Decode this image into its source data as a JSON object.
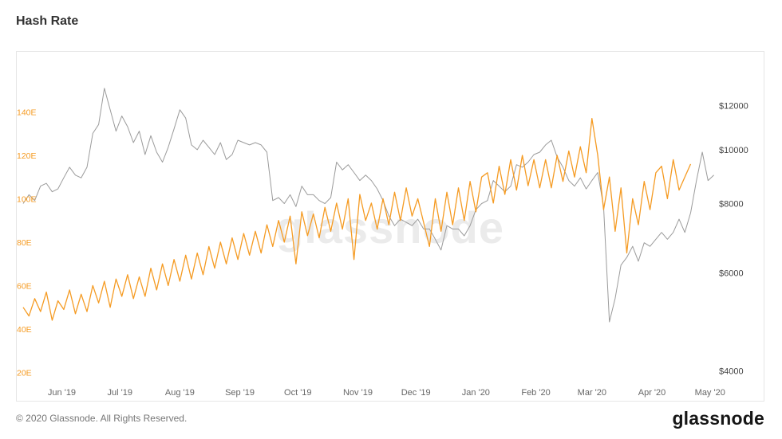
{
  "page": {
    "title": "Hash Rate",
    "watermark": "glassnode",
    "footer_copyright": "© 2020 Glassnode. All Rights Reserved.",
    "brand_logo": "glassnode"
  },
  "chart_data": {
    "type": "line",
    "title": "Hash Rate",
    "grid": "off",
    "legend": "none",
    "watermark": "glassnode",
    "x_axis": {
      "domain_days": [
        0,
        365
      ],
      "tick_days": [
        20,
        50,
        81,
        112,
        142,
        173,
        203,
        234,
        265,
        294,
        325,
        355
      ],
      "tick_labels": [
        "Jun '19",
        "Jul '19",
        "Aug '19",
        "Sep '19",
        "Oct '19",
        "Nov '19",
        "Dec '19",
        "Jan '20",
        "Feb '20",
        "Mar '20",
        "Apr '20",
        "May '20"
      ],
      "label_color": "#666666"
    },
    "y_left": {
      "name": "hash-rate-axis",
      "scale": "linear",
      "range": [
        15,
        160
      ],
      "ticks": [
        20,
        40,
        60,
        80,
        100,
        120,
        140
      ],
      "tick_labels": [
        "20E",
        "40E",
        "60E",
        "80E",
        "100E",
        "120E",
        "140E"
      ],
      "color": "#f59b23"
    },
    "y_right": {
      "name": "price-axis",
      "scale": "log",
      "range": [
        3800,
        14000
      ],
      "ticks": [
        4000,
        6000,
        8000,
        10000,
        12000
      ],
      "tick_labels": [
        "$4000",
        "$6000",
        "$8000",
        "$10000",
        "$12000"
      ],
      "color": "#444444"
    },
    "x_start_day": 0,
    "x_step_days": 3,
    "series": [
      {
        "name": "btc-price-usd",
        "axis": "right",
        "color": "#9b9b9b",
        "width": 1,
        "values": [
          8000,
          8300,
          8100,
          8600,
          8700,
          8400,
          8500,
          8900,
          9300,
          9000,
          8900,
          9300,
          10700,
          11100,
          12900,
          11800,
          10800,
          11500,
          11000,
          10300,
          10800,
          9800,
          10600,
          9900,
          9500,
          10100,
          10900,
          11800,
          11400,
          10200,
          10000,
          10400,
          10100,
          9800,
          10300,
          9600,
          9800,
          10400,
          10300,
          10200,
          10300,
          10200,
          9900,
          8100,
          8200,
          8000,
          8300,
          7900,
          8600,
          8300,
          8300,
          8100,
          8000,
          8200,
          9500,
          9200,
          9400,
          9100,
          8800,
          9000,
          8800,
          8500,
          8100,
          7600,
          7300,
          7500,
          7400,
          7300,
          7500,
          7200,
          7200,
          6900,
          6600,
          7300,
          7200,
          7200,
          7000,
          7300,
          7800,
          8000,
          8100,
          8800,
          8600,
          8400,
          8600,
          9400,
          9300,
          9500,
          9800,
          9900,
          10200,
          10400,
          9700,
          9300,
          8800,
          8600,
          8900,
          8500,
          8800,
          9100,
          7900,
          4900,
          5400,
          6200,
          6400,
          6700,
          6300,
          6800,
          6700,
          6900,
          7100,
          6900,
          7100,
          7500,
          7100,
          7700,
          8800,
          9900,
          8800,
          9000
        ]
      },
      {
        "name": "hash-rate-eh",
        "axis": "left",
        "color": "#f59b23",
        "width": 1.3,
        "values": [
          50,
          46,
          54,
          48,
          57,
          44,
          53,
          49,
          58,
          47,
          56,
          48,
          60,
          52,
          62,
          50,
          63,
          55,
          65,
          54,
          64,
          55,
          68,
          58,
          70,
          60,
          72,
          62,
          74,
          63,
          75,
          65,
          78,
          68,
          80,
          70,
          82,
          72,
          84,
          74,
          85,
          75,
          88,
          78,
          90,
          80,
          92,
          70,
          94,
          83,
          93,
          82,
          96,
          85,
          98,
          86,
          100,
          72,
          102,
          90,
          98,
          86,
          100,
          88,
          103,
          90,
          105,
          92,
          100,
          89,
          78,
          100,
          85,
          103,
          88,
          105,
          90,
          108,
          94,
          110,
          112,
          98,
          115,
          102,
          118,
          104,
          120,
          106,
          118,
          105,
          118,
          105,
          120,
          108,
          122,
          110,
          124,
          112,
          137,
          120,
          95,
          110,
          85,
          105,
          75,
          100,
          88,
          108,
          95,
          112,
          115,
          100,
          118,
          104,
          110,
          116
        ]
      }
    ]
  }
}
